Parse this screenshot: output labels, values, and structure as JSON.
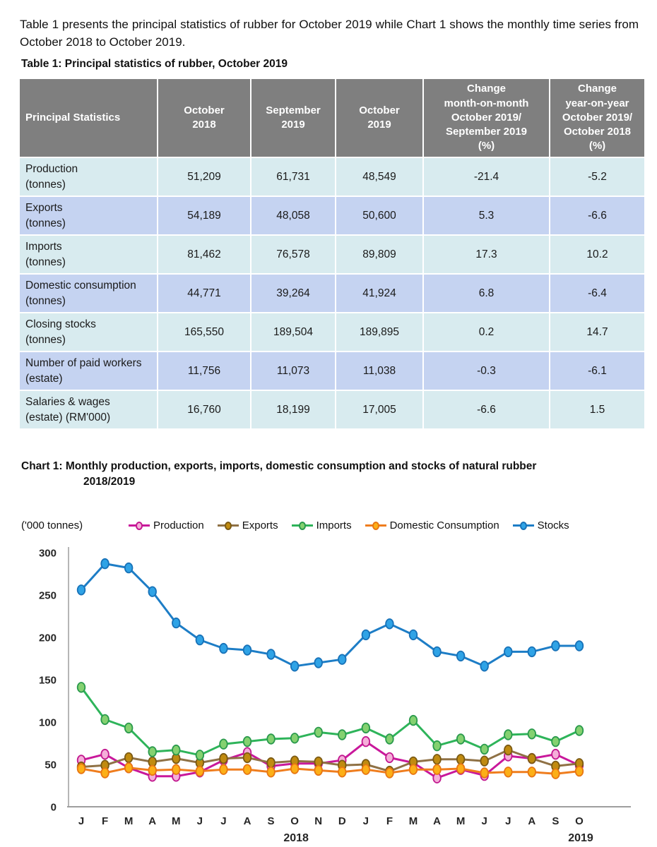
{
  "intro": "Table 1 presents the principal statistics of rubber for October 2019 while Chart 1 shows the monthly time series from October 2018 to October 2019.",
  "table": {
    "title": "Table 1: Principal statistics of rubber, October 2019",
    "headers": [
      "Principal Statistics",
      "October\n2018",
      "September\n2019",
      "October\n2019",
      "Change\nmonth-on-month\nOctober 2019/\nSeptember 2019\n(%)",
      "Change\nyear-on-year\nOctober 2019/\nOctober 2018\n(%)"
    ],
    "rows": [
      {
        "label": "Production",
        "sublabel": "(tonnes)",
        "values": [
          "51,209",
          "61,731",
          "48,549",
          "-21.4",
          "-5.2"
        ]
      },
      {
        "label": "Exports",
        "sublabel": "(tonnes)",
        "values": [
          "54,189",
          "48,058",
          "50,600",
          "5.3",
          "-6.6"
        ]
      },
      {
        "label": "Imports",
        "sublabel": "(tonnes)",
        "values": [
          "81,462",
          "76,578",
          "89,809",
          "17.3",
          "10.2"
        ]
      },
      {
        "label": "Domestic consumption",
        "sublabel": "(tonnes)",
        "values": [
          "44,771",
          "39,264",
          "41,924",
          "6.8",
          "-6.4"
        ]
      },
      {
        "label": "Closing stocks",
        "sublabel": "(tonnes)",
        "values": [
          "165,550",
          "189,504",
          "189,895",
          "0.2",
          "14.7"
        ]
      },
      {
        "label": "Number of paid workers",
        "sublabel": "(estate)",
        "values": [
          "11,756",
          "11,073",
          "11,038",
          "-0.3",
          "-6.1"
        ]
      },
      {
        "label": "Salaries & wages",
        "sublabel": "(estate) (RM'000)",
        "values": [
          "16,760",
          "18,199",
          "17,005",
          "-6.6",
          "1.5"
        ]
      }
    ]
  },
  "chart": {
    "title_line1": "Chart 1: Monthly production, exports, imports, domestic consumption and stocks of natural rubber",
    "title_line2": "2018/2019",
    "axis_unit": "('000 tonnes)"
  },
  "chart_data": {
    "type": "line",
    "title": "Monthly production, exports, imports, domestic consumption and stocks of natural rubber 2018/2019",
    "ylabel": "('000 tonnes)",
    "ylim": [
      0,
      300
    ],
    "yticks": [
      0,
      50,
      100,
      150,
      200,
      250,
      300
    ],
    "grid": false,
    "legend_position": "top",
    "x": [
      "J",
      "F",
      "M",
      "A",
      "M",
      "J",
      "J",
      "A",
      "S",
      "O",
      "N",
      "D",
      "J",
      "F",
      "M",
      "A",
      "M",
      "J",
      "J",
      "A",
      "S",
      "O"
    ],
    "x_years": [
      {
        "label": "2018",
        "index": 9
      },
      {
        "label": "2019",
        "index": 21
      }
    ],
    "series": [
      {
        "name": "Production",
        "color": "#c9189b",
        "marker_fill": "#f5aed9",
        "marker_stroke": "#c2188f",
        "values": [
          55,
          62,
          46,
          36,
          36,
          41,
          55,
          64,
          48,
          51,
          51,
          55,
          77,
          58,
          52,
          34,
          44,
          37,
          60,
          57,
          62,
          49
        ]
      },
      {
        "name": "Exports",
        "color": "#8f7145",
        "marker_fill": "#c08b10",
        "marker_stroke": "#7b5a14",
        "values": [
          47,
          49,
          58,
          53,
          57,
          52,
          57,
          58,
          52,
          54,
          53,
          49,
          50,
          42,
          53,
          56,
          56,
          54,
          67,
          57,
          48,
          51
        ]
      },
      {
        "name": "Imports",
        "color": "#2eb45a",
        "marker_fill": "#84d170",
        "marker_stroke": "#2a9a4d",
        "values": [
          141,
          103,
          93,
          65,
          67,
          61,
          74,
          77,
          80,
          81,
          88,
          85,
          93,
          80,
          102,
          72,
          80,
          68,
          85,
          86,
          77,
          90
        ]
      },
      {
        "name": "Domestic  Consumption",
        "color": "#ef7d1e",
        "marker_fill": "#fcaf17",
        "marker_stroke": "#e87612",
        "values": [
          45,
          40,
          46,
          43,
          44,
          42,
          44,
          44,
          41,
          45,
          43,
          41,
          44,
          40,
          44,
          44,
          45,
          40,
          41,
          41,
          39,
          42
        ]
      },
      {
        "name": "Stocks",
        "color": "#1d7dc6",
        "marker_fill": "#2fa3e6",
        "marker_stroke": "#1872b8",
        "values": [
          256,
          287,
          282,
          254,
          217,
          197,
          187,
          185,
          180,
          166,
          170,
          174,
          203,
          216,
          203,
          183,
          178,
          166,
          183,
          183,
          190,
          190
        ]
      }
    ]
  }
}
